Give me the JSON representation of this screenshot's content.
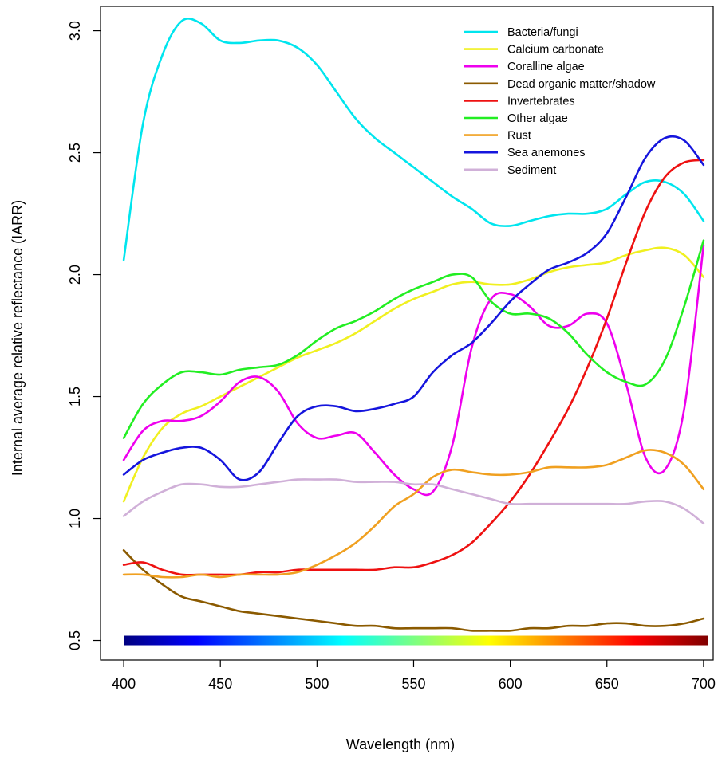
{
  "chart_data": {
    "type": "line",
    "title": "",
    "xlabel": "Wavelength (nm)",
    "ylabel": "Internal average relative reflectance (IARR)",
    "xlim": [
      388,
      705
    ],
    "ylim": [
      0.42,
      3.1
    ],
    "xticks": [
      400,
      450,
      500,
      550,
      600,
      650,
      700
    ],
    "yticks": [
      0.5,
      1.0,
      1.5,
      2.0,
      2.5,
      3.0
    ],
    "ytick_labels": [
      "0.5",
      "1.0",
      "1.5",
      "2.0",
      "2.5",
      "3.0"
    ],
    "legend_position": "top-right",
    "grid": false,
    "spectrum_bar": {
      "y": 0.5,
      "x_from": 400,
      "x_to": 700,
      "colors": [
        "#00007f",
        "#0000ff",
        "#007fff",
        "#00ffff",
        "#7fff7f",
        "#ffff00",
        "#ff7f00",
        "#ff0000",
        "#7f0000"
      ]
    },
    "x": [
      400,
      410,
      420,
      430,
      440,
      450,
      460,
      470,
      480,
      490,
      500,
      510,
      520,
      530,
      540,
      550,
      560,
      570,
      580,
      590,
      600,
      610,
      620,
      630,
      640,
      650,
      660,
      670,
      680,
      690,
      700
    ],
    "series": [
      {
        "name": "Bacteria/fungi",
        "color": "#00e5ee",
        "values": [
          2.06,
          2.62,
          2.9,
          3.04,
          3.03,
          2.96,
          2.95,
          2.96,
          2.96,
          2.93,
          2.86,
          2.75,
          2.64,
          2.56,
          2.5,
          2.44,
          2.38,
          2.32,
          2.27,
          2.21,
          2.2,
          2.22,
          2.24,
          2.25,
          2.25,
          2.27,
          2.33,
          2.38,
          2.38,
          2.33,
          2.22
        ]
      },
      {
        "name": "Calcium carbonate",
        "color": "#f0f020",
        "values": [
          1.07,
          1.25,
          1.37,
          1.43,
          1.46,
          1.5,
          1.54,
          1.58,
          1.62,
          1.66,
          1.69,
          1.72,
          1.76,
          1.81,
          1.86,
          1.9,
          1.93,
          1.96,
          1.97,
          1.96,
          1.96,
          1.98,
          2.01,
          2.03,
          2.04,
          2.05,
          2.08,
          2.1,
          2.11,
          2.08,
          1.99
        ]
      },
      {
        "name": "Coralline algae",
        "color": "#ee00ee",
        "values": [
          1.24,
          1.36,
          1.4,
          1.4,
          1.42,
          1.48,
          1.56,
          1.58,
          1.52,
          1.39,
          1.33,
          1.34,
          1.35,
          1.27,
          1.18,
          1.12,
          1.11,
          1.3,
          1.7,
          1.9,
          1.92,
          1.87,
          1.79,
          1.79,
          1.84,
          1.8,
          1.55,
          1.25,
          1.2,
          1.45,
          2.12
        ]
      },
      {
        "name": "Dead organic matter/shadow",
        "color": "#8b5a00",
        "values": [
          0.87,
          0.79,
          0.73,
          0.68,
          0.66,
          0.64,
          0.62,
          0.61,
          0.6,
          0.59,
          0.58,
          0.57,
          0.56,
          0.56,
          0.55,
          0.55,
          0.55,
          0.55,
          0.54,
          0.54,
          0.54,
          0.55,
          0.55,
          0.56,
          0.56,
          0.57,
          0.57,
          0.56,
          0.56,
          0.57,
          0.59
        ]
      },
      {
        "name": "Invertebrates",
        "color": "#ee1111",
        "values": [
          0.81,
          0.82,
          0.79,
          0.77,
          0.77,
          0.77,
          0.77,
          0.78,
          0.78,
          0.79,
          0.79,
          0.79,
          0.79,
          0.79,
          0.8,
          0.8,
          0.82,
          0.85,
          0.9,
          0.98,
          1.07,
          1.18,
          1.31,
          1.45,
          1.62,
          1.82,
          2.05,
          2.26,
          2.4,
          2.46,
          2.47
        ]
      },
      {
        "name": "Other algae",
        "color": "#22ee22",
        "values": [
          1.33,
          1.47,
          1.55,
          1.6,
          1.6,
          1.59,
          1.61,
          1.62,
          1.63,
          1.67,
          1.73,
          1.78,
          1.81,
          1.85,
          1.9,
          1.94,
          1.97,
          2.0,
          1.99,
          1.89,
          1.84,
          1.84,
          1.82,
          1.76,
          1.67,
          1.6,
          1.56,
          1.55,
          1.65,
          1.87,
          2.14
        ]
      },
      {
        "name": "Rust",
        "color": "#f0a020",
        "values": [
          0.77,
          0.77,
          0.76,
          0.76,
          0.77,
          0.76,
          0.77,
          0.77,
          0.77,
          0.78,
          0.81,
          0.85,
          0.9,
          0.97,
          1.05,
          1.1,
          1.17,
          1.2,
          1.19,
          1.18,
          1.18,
          1.19,
          1.21,
          1.21,
          1.21,
          1.22,
          1.25,
          1.28,
          1.27,
          1.22,
          1.12
        ]
      },
      {
        "name": "Sea anemones",
        "color": "#1515dd",
        "values": [
          1.18,
          1.24,
          1.27,
          1.29,
          1.29,
          1.24,
          1.16,
          1.19,
          1.31,
          1.42,
          1.46,
          1.46,
          1.44,
          1.45,
          1.47,
          1.5,
          1.6,
          1.67,
          1.72,
          1.8,
          1.89,
          1.96,
          2.02,
          2.05,
          2.09,
          2.17,
          2.32,
          2.48,
          2.56,
          2.55,
          2.45
        ]
      },
      {
        "name": "Sediment",
        "color": "#d0b0d8",
        "values": [
          1.01,
          1.07,
          1.11,
          1.14,
          1.14,
          1.13,
          1.13,
          1.14,
          1.15,
          1.16,
          1.16,
          1.16,
          1.15,
          1.15,
          1.15,
          1.14,
          1.14,
          1.12,
          1.1,
          1.08,
          1.06,
          1.06,
          1.06,
          1.06,
          1.06,
          1.06,
          1.06,
          1.07,
          1.07,
          1.04,
          0.98
        ]
      }
    ]
  }
}
